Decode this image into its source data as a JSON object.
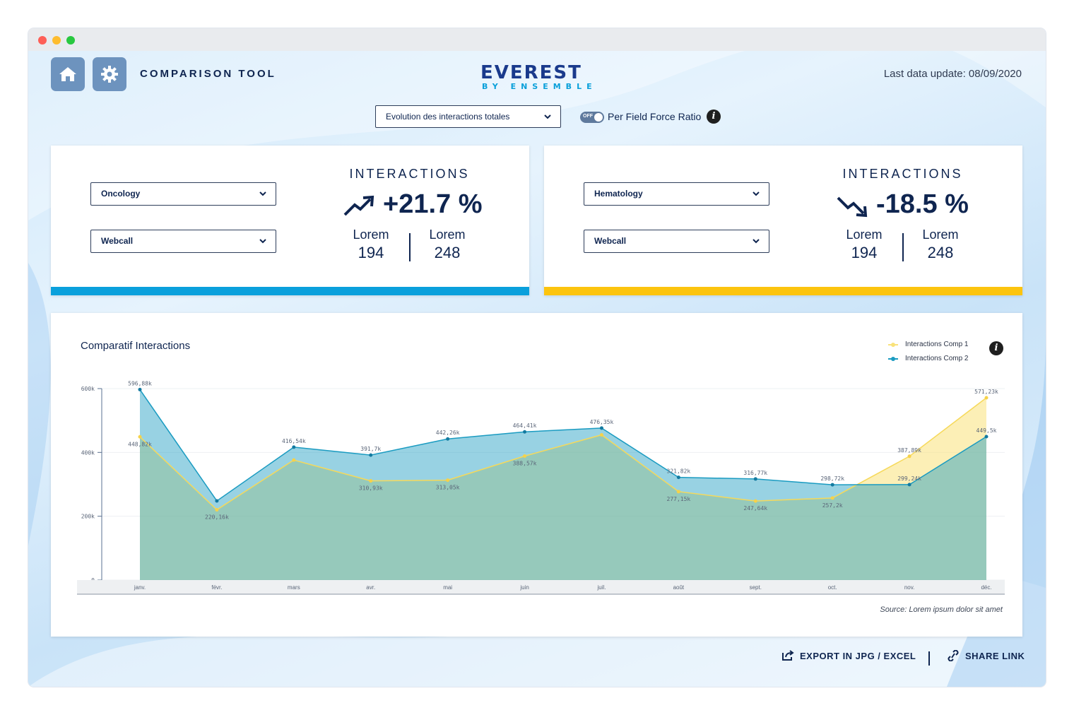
{
  "header": {
    "tool_title": "COMPARISON TOOL",
    "logo_main": "EVEREST",
    "logo_sub": "BY ENSEMBLE",
    "last_update": "Last data update: 08/09/2020",
    "home_icon": "home-icon",
    "settings_icon": "gear-icon"
  },
  "controls": {
    "view_select": "Evolution des interactions totales",
    "toggle_state": "OFF",
    "toggle_label": "Per Field Force Ratio"
  },
  "cards": [
    {
      "select_1": "Oncology",
      "select_2": "Webcall",
      "kpi_title": "INTERACTIONS",
      "kpi_value": "+21.7 %",
      "trend": "up",
      "sub_left_label": "Lorem",
      "sub_left_value": "194",
      "sub_right_label": "Lorem",
      "sub_right_value": "248",
      "accent": "#0aa0dc"
    },
    {
      "select_1": "Hematology",
      "select_2": "Webcall",
      "kpi_title": "INTERACTIONS",
      "kpi_value": "-18.5 %",
      "trend": "down",
      "sub_left_label": "Lorem",
      "sub_left_value": "194",
      "sub_right_label": "Lorem",
      "sub_right_value": "248",
      "accent": "#fcc40e"
    }
  ],
  "chart": {
    "title": "Comparatif Interactions",
    "source": "Source: Lorem ipsum dolor sit amet"
  },
  "chart_data": {
    "type": "area",
    "categories": [
      "janv.",
      "févr.",
      "mars",
      "avr.",
      "mai",
      "juin",
      "juil.",
      "août",
      "sept.",
      "oct.",
      "nov.",
      "déc."
    ],
    "series": [
      {
        "name": "Interactions Comp 1",
        "color": "#f9e27a",
        "values": [
          448.82,
          220.16,
          376,
          310.93,
          313.05,
          388.57,
          455,
          277.15,
          247.64,
          257.2,
          387.89,
          571.23
        ],
        "labels": [
          "448,82k",
          "220,16k",
          "",
          "310,93k",
          "313,05k",
          "388,57k",
          "",
          "277,15k",
          "247,64k",
          "257,2k",
          "387,89k",
          "571,23k"
        ]
      },
      {
        "name": "Interactions Comp 2",
        "color": "#1a9bc1",
        "values": [
          596.88,
          248,
          416.54,
          391.7,
          442.26,
          464.41,
          476.35,
          321.82,
          316.77,
          298.72,
          299.24,
          449.5
        ],
        "labels": [
          "596,88k",
          "",
          "416,54k",
          "391,7k",
          "442,26k",
          "464,41k",
          "476,35k",
          "321,82k",
          "316,77k",
          "298,72k",
          "299,24k",
          "449,5k"
        ]
      }
    ],
    "y_ticks": [
      "0",
      "200k",
      "400k",
      "600k"
    ],
    "ylim": [
      0,
      600
    ],
    "legend": "top-right",
    "grid": true
  },
  "footer": {
    "export_label": "EXPORT IN JPG / EXCEL",
    "share_label": "SHARE LINK"
  }
}
